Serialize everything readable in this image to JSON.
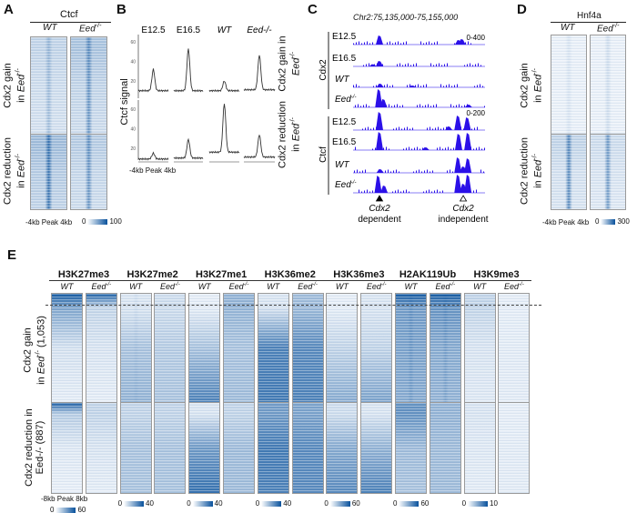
{
  "panels": {
    "a": "A",
    "b": "B",
    "c": "C",
    "d": "D",
    "e": "E"
  },
  "panel_a": {
    "title": "Ctcf",
    "cols": [
      "WT",
      "Eed"
    ],
    "sup": "-/-",
    "row_gain": [
      "Cdx2 gain",
      "in "
    ],
    "row_red": [
      "Cdx2 reduction",
      "in "
    ],
    "eed": "Eed",
    "xaxis": "-4kb  Peak  4kb",
    "cbar_min": "0",
    "cbar_max": "100"
  },
  "panel_d": {
    "title": "Hnf4a",
    "cols": [
      "WT",
      "Eed"
    ],
    "xaxis": "-4kb  Peak  4kb",
    "cbar_min": "0",
    "cbar_max": "300"
  },
  "panel_e": {
    "xaxis": "-8kb Peak 8kb",
    "row_gain": [
      "Cdx2 gain",
      "in ",
      "(1,053)"
    ],
    "row_red": [
      "Cdx2 reduction",
      "in ",
      "(887)"
    ],
    "marks": [
      {
        "name": "H3K27me3",
        "cmin": "0",
        "cmax": "60"
      },
      {
        "name": "H3K27me2",
        "cmin": "0",
        "cmax": "40"
      },
      {
        "name": "H3K27me1",
        "cmin": "0",
        "cmax": "40"
      },
      {
        "name": "H3K36me2",
        "cmin": "0",
        "cmax": "40"
      },
      {
        "name": "H3K36me3",
        "cmin": "0",
        "cmax": "60"
      },
      {
        "name": "H2AK119Ub",
        "cmin": "0",
        "cmax": "60"
      },
      {
        "name": "H3K9me3",
        "cmin": "0",
        "cmax": "10"
      }
    ],
    "sub": [
      "WT",
      "Eed"
    ],
    "sup": "-/-"
  },
  "chart_data": [
    {
      "type": "line",
      "panel": "B",
      "ylabel": "Ctcf signal",
      "xlabel": "-4kb Peak 4kb",
      "yticks": [
        20,
        40,
        60
      ],
      "columns": [
        "E12.5",
        "E16.5",
        "WT",
        "Eed-/-"
      ],
      "rows": [
        {
          "name": "Cdx2 gain in Eed-/-",
          "baseline": [
            10,
            10,
            10,
            11
          ],
          "peak": [
            32,
            53,
            20,
            47
          ]
        },
        {
          "name": "Cdx2 reduction in Eed-/-",
          "baseline": [
            9,
            10,
            16,
            11
          ],
          "peak": [
            15,
            29,
            66,
            34
          ]
        }
      ]
    },
    {
      "type": "area",
      "panel": "C",
      "title": "Chr2:75,135,000-75,155,000",
      "xlim": [
        75135000,
        75155000
      ],
      "groups": [
        {
          "name": "Cdx2",
          "range": "0-400"
        },
        {
          "name": "Ctcf",
          "range": "0-200"
        }
      ],
      "tracks": [
        {
          "group": "Cdx2",
          "label": "E12.5",
          "peaks": [
            [
              75139000,
              0.5
            ],
            [
              75151000,
              0.25
            ],
            [
              75151500,
              0.3
            ]
          ]
        },
        {
          "group": "Cdx2",
          "label": "E16.5",
          "peaks": [
            [
              75139000,
              0.3
            ],
            [
              75138000,
              0.12
            ]
          ]
        },
        {
          "group": "Cdx2",
          "label": "WT",
          "peaks": [
            [
              75139100,
              0.2
            ],
            [
              75144000,
              0.1
            ]
          ]
        },
        {
          "group": "Cdx2",
          "label": "Eed",
          "peaks": [
            [
              75138900,
              1.0
            ],
            [
              75139600,
              0.45
            ],
            [
              75152500,
              0.15
            ]
          ]
        },
        {
          "group": "Ctcf",
          "label": "E12.5",
          "peaks": [
            [
              75139000,
              1.0
            ],
            [
              75150900,
              0.8
            ],
            [
              75152300,
              0.7
            ],
            [
              75149500,
              0.2
            ]
          ]
        },
        {
          "group": "Ctcf",
          "label": "E16.5",
          "peaks": [
            [
              75139000,
              1.0
            ],
            [
              75151000,
              0.9
            ],
            [
              75152400,
              0.95
            ],
            [
              75146000,
              0.15
            ]
          ]
        },
        {
          "group": "Ctcf",
          "label": "WT",
          "peaks": [
            [
              75139100,
              0.2
            ],
            [
              75150900,
              0.85
            ],
            [
              75152400,
              0.8
            ],
            [
              75151700,
              0.35
            ]
          ]
        },
        {
          "group": "Ctcf",
          "label": "Eed",
          "peaks": [
            [
              75138800,
              0.95
            ],
            [
              75139700,
              0.4
            ],
            [
              75150900,
              1.0
            ],
            [
              75152400,
              1.0
            ],
            [
              75151700,
              0.5
            ]
          ]
        }
      ],
      "annotations": [
        {
          "label": "Cdx2",
          "sub": "dependent",
          "pos": 75139000,
          "marker": "filled-triangle"
        },
        {
          "label": "Cdx2",
          "sub": "independent",
          "pos": 75151700,
          "marker": "open-triangle"
        }
      ]
    },
    {
      "type": "heatmap",
      "panel": "A",
      "title": "Ctcf",
      "columns": [
        "WT",
        "Eed-/-"
      ],
      "clim": [
        0,
        100
      ]
    },
    {
      "type": "heatmap",
      "panel": "D",
      "title": "Hnf4a",
      "columns": [
        "WT",
        "Eed-/-"
      ],
      "clim": [
        0,
        300
      ]
    },
    {
      "type": "heatmap",
      "panel": "E",
      "rows": [
        "Cdx2 gain in Eed-/- (1,053)",
        "Cdx2 reduction in Eed-/- (887)"
      ],
      "columns": [
        "WT",
        "Eed-/-"
      ],
      "marks": [
        "H3K27me3",
        "H3K27me2",
        "H3K27me1",
        "H3K36me2",
        "H3K36me3",
        "H2AK119Ub",
        "H3K9me3"
      ],
      "clim": [
        [
          0,
          60
        ],
        [
          0,
          40
        ],
        [
          0,
          40
        ],
        [
          0,
          40
        ],
        [
          0,
          60
        ],
        [
          0,
          60
        ],
        [
          0,
          10
        ]
      ]
    }
  ]
}
